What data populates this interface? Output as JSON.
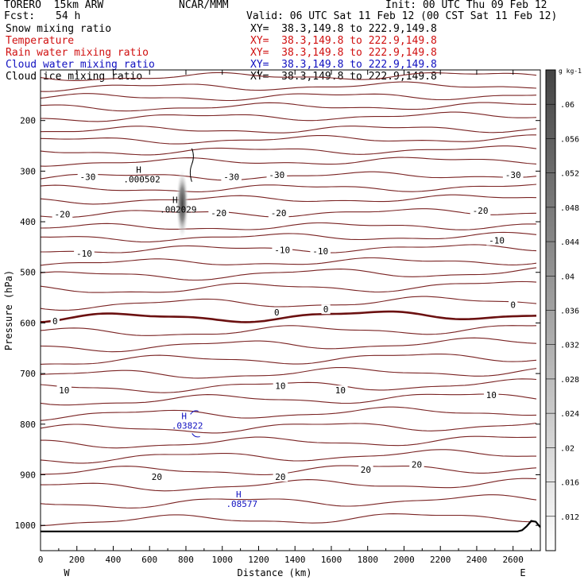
{
  "header": {
    "model": "TORERO  15km ARW",
    "center": "NCAR/MMM",
    "init": "Init: 00 UTC Thu 09 Feb 12",
    "fcst_label": "Fcst:",
    "fcst_value": "54 h",
    "valid": "Valid: 06 UTC Sat 11 Feb 12 (00 CST Sat 11 Feb 12)"
  },
  "fields": [
    {
      "label": "Snow mixing ratio",
      "xy": "XY=  38.3,149.8 to 222.9,149.8",
      "color": "#000000"
    },
    {
      "label": "Temperature",
      "xy": "XY=  38.3,149.8 to 222.9,149.8",
      "color": "#d01010"
    },
    {
      "label": "Rain water mixing ratio",
      "xy": "XY=  38.3,149.8 to 222.9,149.8",
      "color": "#d01010"
    },
    {
      "label": "Cloud water mixing ratio",
      "xy": "XY=  38.3,149.8 to 222.9,149.8",
      "color": "#1010c0"
    },
    {
      "label": "Cloud ice mixing ratio",
      "xy": "XY=  38.3,149.8 to 222.9,149.8",
      "color": "#000000"
    }
  ],
  "colors": {
    "contour": "#7a2323",
    "zero_contour": "#6b1010",
    "cloud_water": "#1010c0",
    "terrain": "#000000"
  },
  "chart_data": {
    "type": "contour",
    "xlabel": "Distance (km)",
    "ylabel": "Pressure (hPa)",
    "xlim": [
      0,
      2750
    ],
    "ylim": [
      1050,
      100
    ],
    "x_ticks": [
      0,
      200,
      400,
      600,
      800,
      1000,
      1200,
      1400,
      1600,
      1800,
      2000,
      2200,
      2400,
      2600
    ],
    "y_ticks": [
      200,
      300,
      400,
      500,
      600,
      700,
      800,
      900,
      1000
    ],
    "x_end_labels": {
      "left": "W",
      "right": "E"
    },
    "colorbar": {
      "unit": "g kg-1",
      "ticks": [
        ".012",
        ".016",
        ".02",
        ".024",
        ".028",
        ".032",
        ".036",
        ".04",
        ".044",
        ".048",
        ".052",
        ".056",
        ".06"
      ]
    },
    "temperature_isotherms": [
      {
        "p": 115
      },
      {
        "p": 135
      },
      {
        "p": 155
      },
      {
        "p": 175
      },
      {
        "p": 195
      },
      {
        "p": 220
      },
      {
        "p": 240
      },
      {
        "p": 262
      },
      {
        "p": 283
      },
      {
        "p": 312,
        "label": "-30"
      },
      {
        "p": 336
      },
      {
        "p": 358
      },
      {
        "p": 385,
        "label": "-20"
      },
      {
        "p": 412
      },
      {
        "p": 433
      },
      {
        "p": 456,
        "label": "-10"
      },
      {
        "p": 482
      },
      {
        "p": 508
      },
      {
        "p": 535
      },
      {
        "p": 565
      },
      {
        "p": 592,
        "label": "0",
        "zero": true
      },
      {
        "p": 620
      },
      {
        "p": 648
      },
      {
        "p": 676
      },
      {
        "p": 704
      },
      {
        "p": 730,
        "label": "10"
      },
      {
        "p": 755
      },
      {
        "p": 783
      },
      {
        "p": 811
      },
      {
        "p": 840
      },
      {
        "p": 868
      },
      {
        "p": 895,
        "label": "20"
      },
      {
        "p": 925
      },
      {
        "p": 958
      },
      {
        "p": 992
      }
    ],
    "isotherm_labels": [
      {
        "text": "-30",
        "x": 260,
        "p": 311
      },
      {
        "text": "-30",
        "x": 1050,
        "p": 311
      },
      {
        "text": "-30",
        "x": 1300,
        "p": 307
      },
      {
        "text": "-30",
        "x": 2600,
        "p": 307
      },
      {
        "text": "-20",
        "x": 120,
        "p": 385
      },
      {
        "text": "-20",
        "x": 980,
        "p": 383
      },
      {
        "text": "-20",
        "x": 1310,
        "p": 383
      },
      {
        "text": "-20",
        "x": 2420,
        "p": 378
      },
      {
        "text": "-10",
        "x": 240,
        "p": 463
      },
      {
        "text": "-10",
        "x": 1330,
        "p": 456
      },
      {
        "text": "-10",
        "x": 1540,
        "p": 458
      },
      {
        "text": "-10",
        "x": 2510,
        "p": 437
      },
      {
        "text": "0",
        "x": 80,
        "p": 596
      },
      {
        "text": "0",
        "x": 1300,
        "p": 579
      },
      {
        "text": "0",
        "x": 1570,
        "p": 573
      },
      {
        "text": "0",
        "x": 2600,
        "p": 564
      },
      {
        "text": "10",
        "x": 130,
        "p": 733
      },
      {
        "text": "10",
        "x": 1320,
        "p": 724
      },
      {
        "text": "10",
        "x": 1650,
        "p": 733
      },
      {
        "text": "10",
        "x": 2480,
        "p": 742
      },
      {
        "text": "20",
        "x": 640,
        "p": 904
      },
      {
        "text": "20",
        "x": 1320,
        "p": 904
      },
      {
        "text": "20",
        "x": 1790,
        "p": 890
      },
      {
        "text": "20",
        "x": 2070,
        "p": 880
      }
    ],
    "extrema": [
      {
        "text": "H",
        "value": ".000502",
        "x": 540,
        "p": 303,
        "color": "#000000"
      },
      {
        "text": "H",
        "value": ".002029",
        "x": 740,
        "p": 363,
        "color": "#000000"
      },
      {
        "text": "H",
        "value": ".03822",
        "x": 790,
        "p": 790,
        "color": "#1010c0"
      },
      {
        "text": "H",
        "value": ".08577",
        "x": 1090,
        "p": 945,
        "color": "#1010c0"
      }
    ],
    "snow_max": {
      "x": 780,
      "p": 365,
      "value": 0.05
    }
  }
}
